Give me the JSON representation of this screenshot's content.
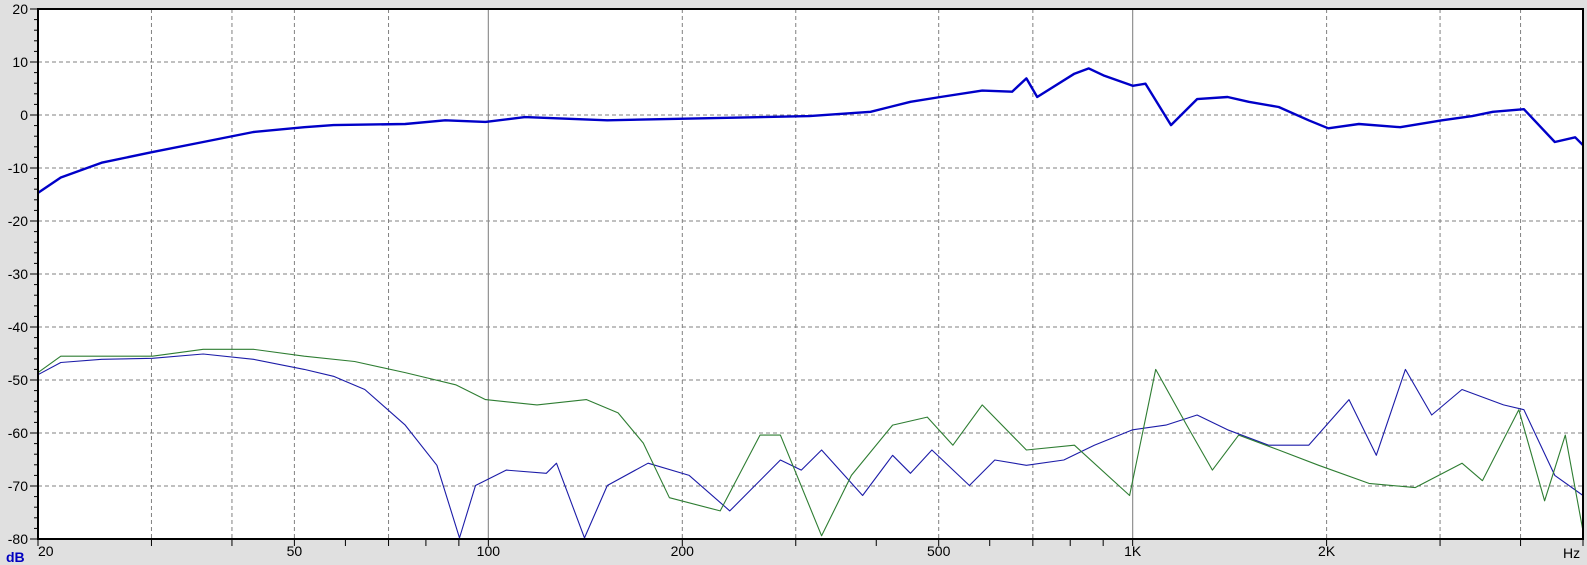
{
  "chart_data": {
    "type": "line",
    "title": "",
    "xlabel": "Hz",
    "ylabel": "dB",
    "x_scale": "log",
    "xlim": [
      20,
      5000
    ],
    "ylim": [
      -80,
      20
    ],
    "grid": true,
    "y_ticks": [
      20,
      10,
      0,
      -10,
      -20,
      -30,
      -40,
      -50,
      -60,
      -70,
      -80
    ],
    "x_tick_labels": [
      {
        "value": 20,
        "label": "20"
      },
      {
        "value": 50,
        "label": "50"
      },
      {
        "value": 100,
        "label": "100"
      },
      {
        "value": 200,
        "label": "200"
      },
      {
        "value": 500,
        "label": "500"
      },
      {
        "value": 1000,
        "label": "1K"
      },
      {
        "value": 2000,
        "label": "2K"
      }
    ],
    "series": [
      {
        "color": "#0000c8",
        "width": "thick",
        "points": [
          [
            20,
            -14.7
          ],
          [
            21.7,
            -11.8
          ],
          [
            25.1,
            -9
          ],
          [
            30.1,
            -7
          ],
          [
            36.1,
            -5.1
          ],
          [
            43.2,
            -3.2
          ],
          [
            51.8,
            -2.3
          ],
          [
            57.5,
            -1.9
          ],
          [
            74.3,
            -1.7
          ],
          [
            85.7,
            -1
          ],
          [
            99,
            -1.3
          ],
          [
            114,
            -0.4
          ],
          [
            153,
            -1
          ],
          [
            220,
            -0.6
          ],
          [
            315,
            -0.2
          ],
          [
            392,
            0.6
          ],
          [
            452,
            2.5
          ],
          [
            503,
            3.4
          ],
          [
            584,
            4.6
          ],
          [
            650,
            4.4
          ],
          [
            684,
            6.9
          ],
          [
            711,
            3.4
          ],
          [
            812,
            7.8
          ],
          [
            855,
            8.8
          ],
          [
            904,
            7.4
          ],
          [
            1000,
            5.5
          ],
          [
            1047,
            5.9
          ],
          [
            1147,
            -1.9
          ],
          [
            1259,
            3.0
          ],
          [
            1404,
            3.4
          ],
          [
            1514,
            2.5
          ],
          [
            1685,
            1.5
          ],
          [
            1876,
            -1
          ],
          [
            2012,
            -2.5
          ],
          [
            2245,
            -1.7
          ],
          [
            2602,
            -2.3
          ],
          [
            3021,
            -1
          ],
          [
            3366,
            -0.2
          ],
          [
            3624,
            0.6
          ],
          [
            4048,
            1.1
          ],
          [
            4521,
            -5.1
          ],
          [
            4863,
            -4.2
          ],
          [
            5000,
            -5.7
          ]
        ]
      },
      {
        "color": "#1c1ca8",
        "width": "thin",
        "points": [
          [
            20,
            -49
          ],
          [
            21.7,
            -46.7
          ],
          [
            25.1,
            -46.1
          ],
          [
            30.1,
            -45.9
          ],
          [
            36.1,
            -45.1
          ],
          [
            43.2,
            -46.1
          ],
          [
            51.8,
            -48
          ],
          [
            57.5,
            -49.3
          ],
          [
            64.3,
            -51.8
          ],
          [
            74.3,
            -58.5
          ],
          [
            83.2,
            -66.1
          ],
          [
            90.2,
            -79.8
          ],
          [
            95.5,
            -69.9
          ],
          [
            106.6,
            -67
          ],
          [
            123,
            -67.6
          ],
          [
            127.6,
            -65.7
          ],
          [
            141,
            -79.8
          ],
          [
            153,
            -69.9
          ],
          [
            177,
            -65.7
          ],
          [
            205,
            -68
          ],
          [
            237,
            -74.7
          ],
          [
            284,
            -65.1
          ],
          [
            306,
            -67
          ],
          [
            329,
            -63.2
          ],
          [
            381,
            -71.8
          ],
          [
            424,
            -64.2
          ],
          [
            452,
            -67.6
          ],
          [
            488,
            -63.2
          ],
          [
            558,
            -69.9
          ],
          [
            611,
            -65.1
          ],
          [
            684,
            -66.1
          ],
          [
            782,
            -65.1
          ],
          [
            872,
            -62.3
          ],
          [
            1000,
            -59.4
          ],
          [
            1126,
            -58.5
          ],
          [
            1259,
            -56.6
          ],
          [
            1404,
            -59.4
          ],
          [
            1625,
            -62.3
          ],
          [
            1876,
            -62.3
          ],
          [
            2167,
            -53.7
          ],
          [
            2389,
            -64.2
          ],
          [
            2650,
            -48
          ],
          [
            2912,
            -56.6
          ],
          [
            3245,
            -51.8
          ],
          [
            3763,
            -54.7
          ],
          [
            4048,
            -55.6
          ],
          [
            4521,
            -68
          ],
          [
            5000,
            -71.8
          ]
        ]
      },
      {
        "color": "#2e7d32",
        "width": "thin",
        "points": [
          [
            20,
            -48.6
          ],
          [
            21.7,
            -45.5
          ],
          [
            25.1,
            -45.5
          ],
          [
            30.1,
            -45.5
          ],
          [
            36.1,
            -44.2
          ],
          [
            43.2,
            -44.2
          ],
          [
            51.8,
            -45.5
          ],
          [
            62,
            -46.5
          ],
          [
            74.3,
            -48.6
          ],
          [
            89,
            -50.9
          ],
          [
            99,
            -53.7
          ],
          [
            119,
            -54.7
          ],
          [
            142,
            -53.7
          ],
          [
            159,
            -56.2
          ],
          [
            174,
            -61.9
          ],
          [
            191,
            -72.2
          ],
          [
            229,
            -74.7
          ],
          [
            264,
            -60.4
          ],
          [
            284,
            -60.4
          ],
          [
            329,
            -79.4
          ],
          [
            366,
            -68
          ],
          [
            424,
            -58.5
          ],
          [
            480,
            -57
          ],
          [
            526,
            -62.3
          ],
          [
            584,
            -54.7
          ],
          [
            684,
            -63.2
          ],
          [
            812,
            -62.3
          ],
          [
            989,
            -71.8
          ],
          [
            1086,
            -48
          ],
          [
            1213,
            -58.5
          ],
          [
            1330,
            -67
          ],
          [
            1461,
            -60.4
          ],
          [
            1685,
            -63.2
          ],
          [
            1944,
            -66.1
          ],
          [
            2327,
            -69.5
          ],
          [
            2744,
            -70.3
          ],
          [
            3245,
            -65.7
          ],
          [
            3490,
            -69
          ],
          [
            3975,
            -55.6
          ],
          [
            4359,
            -72.8
          ],
          [
            4693,
            -60.4
          ],
          [
            5000,
            -78.5
          ]
        ]
      }
    ]
  }
}
